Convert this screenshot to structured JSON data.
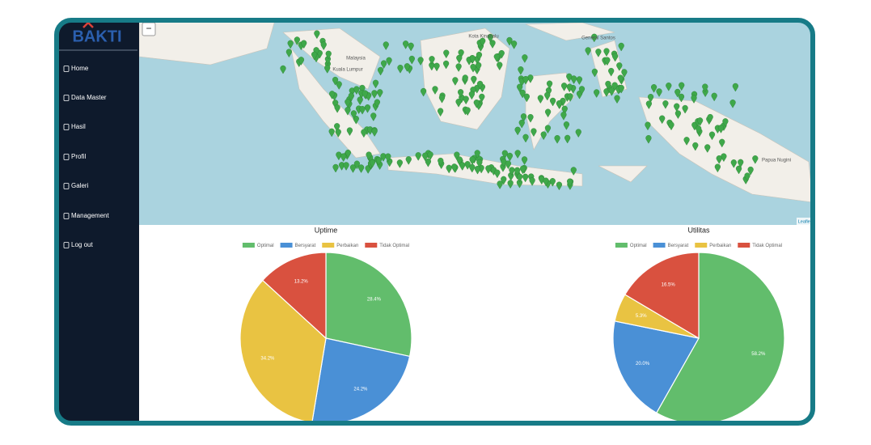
{
  "sidebar": {
    "logo": "BAKTI",
    "menu": [
      "Home",
      "Data Master",
      "Hasil",
      "Profil",
      "Galeri",
      "Management",
      "Log out"
    ]
  },
  "map": {
    "zoom_out": "−",
    "labels": [
      "Malaysia",
      "Kota Kinabalu",
      "Kuala Lumpur",
      "Papua Nugini",
      "General Santos"
    ],
    "attribution": "Leaflet"
  },
  "chart_data": [
    {
      "type": "pie",
      "title": "Uptime",
      "categories": [
        "Optimal",
        "Bersyarat",
        "Perbaikan",
        "Tidak Optimal"
      ],
      "values": [
        28.4,
        24.2,
        34.2,
        13.2
      ],
      "value_labels": [
        "28.4%",
        "24.2%",
        "34.2%",
        "13.2%"
      ],
      "colors": [
        "#62bd6c",
        "#4a90d6",
        "#e9c342",
        "#d9513f"
      ],
      "legend": "top"
    },
    {
      "type": "pie",
      "title": "Utilitas",
      "categories": [
        "Optimal",
        "Bersyarat",
        "Perbaikan",
        "Tidak Optimal"
      ],
      "values": [
        58.2,
        20.0,
        5.3,
        16.5
      ],
      "value_labels": [
        "58.2%",
        "20.0%",
        "5.3%",
        "16.5%"
      ],
      "colors": [
        "#62bd6c",
        "#4a90d6",
        "#e9c342",
        "#d9513f"
      ],
      "legend": "top"
    }
  ]
}
